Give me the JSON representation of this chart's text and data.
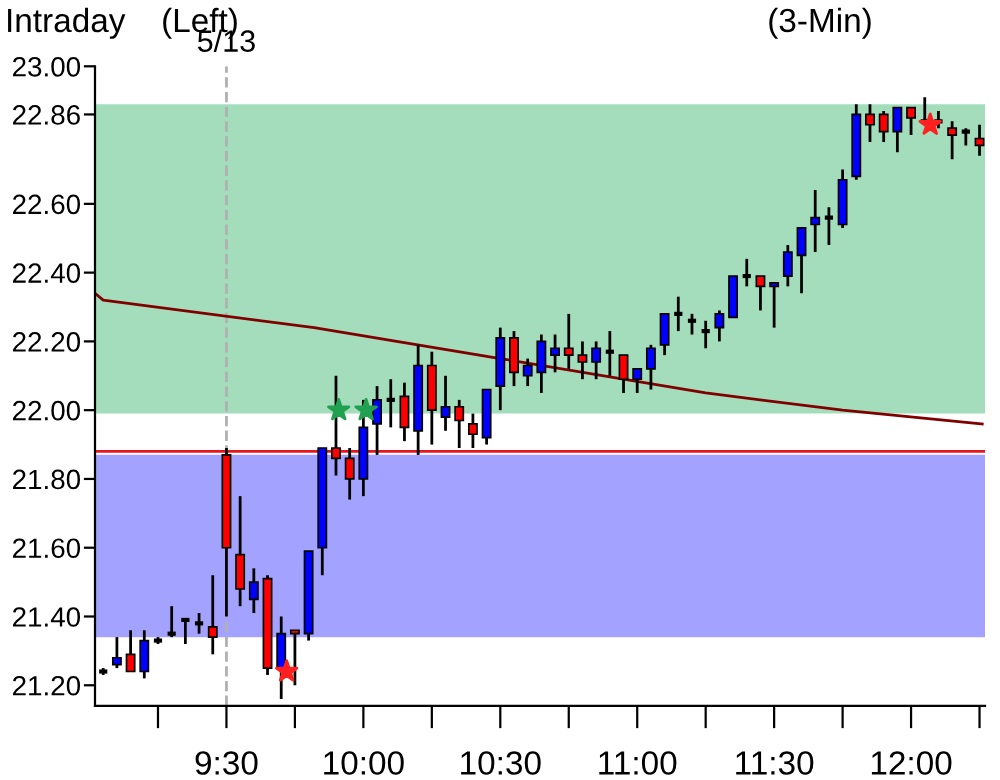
{
  "chart_data": {
    "type": "candlestick",
    "title": "Intraday",
    "annotations": [
      "(Left)",
      "(3-Min)",
      {
        "text": "5/13",
        "x": 9.5,
        "y": 23.0
      }
    ],
    "x": [
      9.05,
      9.1,
      9.15,
      9.2,
      9.25,
      9.3,
      9.35,
      9.4,
      9.45,
      9.5,
      9.55,
      9.6,
      9.65,
      9.7,
      9.75,
      9.8,
      9.85,
      9.9,
      9.95,
      10.0,
      10.05,
      10.1,
      10.15,
      10.2,
      10.25,
      10.3,
      10.35,
      10.4,
      10.45,
      10.5,
      10.55,
      10.6,
      10.65,
      10.7,
      10.75,
      10.8,
      10.85,
      10.9,
      10.95,
      11.0,
      11.05,
      11.1,
      11.15,
      11.2,
      11.25,
      11.3,
      11.35,
      11.4,
      11.45,
      11.5,
      11.55,
      11.6,
      11.65,
      11.7,
      11.75,
      11.8,
      11.85,
      11.9,
      11.95,
      12.0,
      12.05,
      12.1,
      12.15,
      12.2,
      12.25
    ],
    "ohlc": [
      [
        21.24,
        21.25,
        21.23,
        21.24
      ],
      [
        21.26,
        21.34,
        21.25,
        21.28
      ],
      [
        21.29,
        21.36,
        21.24,
        21.24
      ],
      [
        21.24,
        21.36,
        21.22,
        21.33
      ],
      [
        21.33,
        21.34,
        21.32,
        21.33
      ],
      [
        21.35,
        21.43,
        21.34,
        21.35
      ],
      [
        21.39,
        21.39,
        21.32,
        21.39
      ],
      [
        21.38,
        21.41,
        21.35,
        21.38
      ],
      [
        21.37,
        21.52,
        21.29,
        21.34
      ],
      [
        21.87,
        21.89,
        21.4,
        21.6
      ],
      [
        21.58,
        21.75,
        21.43,
        21.48
      ],
      [
        21.45,
        21.54,
        21.41,
        21.5
      ],
      [
        21.51,
        21.52,
        21.23,
        21.25
      ],
      [
        21.25,
        21.4,
        21.16,
        21.35
      ],
      [
        21.36,
        21.36,
        21.2,
        21.35
      ],
      [
        21.35,
        21.59,
        21.33,
        21.59
      ],
      [
        21.6,
        21.89,
        21.52,
        21.89
      ],
      [
        21.89,
        22.1,
        21.81,
        21.86
      ],
      [
        21.86,
        21.89,
        21.74,
        21.8
      ],
      [
        21.8,
        22.03,
        21.75,
        21.95
      ],
      [
        21.96,
        22.07,
        21.87,
        22.03
      ],
      [
        22.03,
        22.09,
        21.95,
        22.03
      ],
      [
        22.04,
        22.08,
        21.91,
        21.95
      ],
      [
        21.94,
        22.19,
        21.87,
        22.13
      ],
      [
        22.13,
        22.17,
        21.9,
        22.0
      ],
      [
        21.98,
        22.1,
        21.94,
        22.01
      ],
      [
        22.01,
        22.03,
        21.89,
        21.97
      ],
      [
        21.96,
        21.99,
        21.89,
        21.93
      ],
      [
        21.92,
        22.06,
        21.9,
        22.06
      ],
      [
        22.07,
        22.24,
        22.0,
        22.21
      ],
      [
        22.21,
        22.23,
        22.07,
        22.11
      ],
      [
        22.1,
        22.15,
        22.07,
        22.13
      ],
      [
        22.11,
        22.22,
        22.05,
        22.2
      ],
      [
        22.16,
        22.22,
        22.11,
        22.18
      ],
      [
        22.18,
        22.28,
        22.12,
        22.16
      ],
      [
        22.16,
        22.2,
        22.09,
        22.14
      ],
      [
        22.14,
        22.2,
        22.09,
        22.18
      ],
      [
        22.17,
        22.23,
        22.1,
        22.17
      ],
      [
        22.16,
        22.16,
        22.05,
        22.09
      ],
      [
        22.09,
        22.12,
        22.05,
        22.12
      ],
      [
        22.12,
        22.19,
        22.06,
        22.18
      ],
      [
        22.19,
        22.28,
        22.16,
        22.28
      ],
      [
        22.28,
        22.33,
        22.23,
        22.28
      ],
      [
        22.26,
        22.28,
        22.22,
        22.26
      ],
      [
        22.23,
        22.26,
        22.18,
        22.23
      ],
      [
        22.24,
        22.29,
        22.2,
        22.28
      ],
      [
        22.27,
        22.39,
        22.27,
        22.39
      ],
      [
        22.39,
        22.44,
        22.36,
        22.39
      ],
      [
        22.39,
        22.39,
        22.29,
        22.36
      ],
      [
        22.36,
        22.37,
        22.24,
        22.37
      ],
      [
        22.39,
        22.48,
        22.36,
        22.46
      ],
      [
        22.45,
        22.53,
        22.34,
        22.53
      ],
      [
        22.54,
        22.64,
        22.46,
        22.56
      ],
      [
        22.56,
        22.59,
        22.48,
        22.56
      ],
      [
        22.54,
        22.7,
        22.53,
        22.67
      ],
      [
        22.68,
        22.89,
        22.67,
        22.86
      ],
      [
        22.86,
        22.89,
        22.78,
        22.83
      ],
      [
        22.86,
        22.87,
        22.78,
        22.81
      ],
      [
        22.81,
        22.88,
        22.75,
        22.88
      ],
      [
        22.88,
        22.88,
        22.8,
        22.85
      ],
      [
        22.84,
        22.91,
        22.83,
        22.84
      ],
      [
        22.84,
        22.87,
        22.82,
        22.84
      ],
      [
        22.82,
        22.84,
        22.73,
        22.8
      ],
      [
        22.81,
        22.82,
        22.77,
        22.81
      ],
      [
        22.79,
        22.83,
        22.74,
        22.77
      ]
    ],
    "colors": [
      "#000000",
      "#0000ff",
      "#ff0000",
      "#0000ff",
      "#000000",
      "#000000",
      "#000000",
      "#000000",
      "#ff0000",
      "#ff0000",
      "#ff0000",
      "#0000ff",
      "#ff0000",
      "#0000ff",
      "#ff0000",
      "#0000ff",
      "#0000ff",
      "#ff0000",
      "#ff0000",
      "#0000ff",
      "#0000ff",
      "#000000",
      "#ff0000",
      "#0000ff",
      "#ff0000",
      "#0000ff",
      "#ff0000",
      "#ff0000",
      "#0000ff",
      "#0000ff",
      "#ff0000",
      "#0000ff",
      "#0000ff",
      "#0000ff",
      "#ff0000",
      "#ff0000",
      "#0000ff",
      "#000000",
      "#ff0000",
      "#0000ff",
      "#0000ff",
      "#0000ff",
      "#000000",
      "#000000",
      "#000000",
      "#0000ff",
      "#0000ff",
      "#000000",
      "#ff0000",
      "#0000ff",
      "#0000ff",
      "#0000ff",
      "#0000ff",
      "#000000",
      "#0000ff",
      "#0000ff",
      "#ff0000",
      "#ff0000",
      "#0000ff",
      "#ff0000",
      "#000000",
      "#000000",
      "#ff0000",
      "#000000",
      "#ff0000"
    ],
    "series": [
      {
        "type": "line",
        "color": "#800000",
        "x": [
          9.02,
          9.05,
          9.82,
          10.5,
          11.25,
          11.75,
          12.26
        ],
        "values": [
          22.34,
          22.32,
          22.24,
          22.15,
          22.05,
          22.0,
          21.96
        ]
      },
      {
        "type": "scatter",
        "color": "#20a050",
        "marker": "star",
        "x": [
          9.91,
          10.01
        ],
        "values": [
          22.0,
          22.0
        ]
      },
      {
        "type": "scatter",
        "color": "#ff2020",
        "marker": "star",
        "x": [
          9.72,
          12.07
        ],
        "values": [
          21.24,
          22.83
        ]
      }
    ],
    "bands": [
      {
        "axis": "y",
        "from": 21.99,
        "to": 22.89,
        "color": "#99d9b4"
      },
      {
        "axis": "y",
        "from": 21.34,
        "to": 21.87,
        "color": "#9999ff"
      }
    ],
    "ref_lines": [
      {
        "axis": "y",
        "value": 21.88,
        "color": "#e8141e",
        "line_style": "solid"
      },
      {
        "axis": "x",
        "value": 9.5,
        "color": "#b0b0b0",
        "line_style": "dashed"
      }
    ],
    "xlim": [
      9.02,
      12.27
    ],
    "xticks": [
      {
        "value": 9.25,
        "label": null
      },
      {
        "value": 9.5,
        "label": "9:30"
      },
      {
        "value": 9.75,
        "label": null
      },
      {
        "value": 10,
        "label": "10:00"
      },
      {
        "value": 10.25,
        "label": null
      },
      {
        "value": 10.5,
        "label": "10:30"
      },
      {
        "value": 10.75,
        "label": null
      },
      {
        "value": 11,
        "label": "11:00"
      },
      {
        "value": 11.25,
        "label": null
      },
      {
        "value": 11.5,
        "label": "11:30"
      },
      {
        "value": 11.75,
        "label": null
      },
      {
        "value": 12,
        "label": "12:00"
      },
      {
        "value": 12.25,
        "label": null
      }
    ],
    "ylim": [
      21.14,
      23.0
    ],
    "yticks": [
      {
        "value": 21.2,
        "label": "21.20"
      },
      {
        "value": 21.4,
        "label": "21.40"
      },
      {
        "value": 21.6,
        "label": "21.60"
      },
      {
        "value": 21.8,
        "label": "21.80"
      },
      {
        "value": 22.0,
        "label": "22.00"
      },
      {
        "value": 22.2,
        "label": "22.20"
      },
      {
        "value": 22.4,
        "label": "22.40"
      },
      {
        "value": 22.6,
        "label": "22.60"
      },
      22.86,
      {
        "value": 23.0,
        "label": "23.00"
      }
    ],
    "grid": false,
    "legend": false
  }
}
